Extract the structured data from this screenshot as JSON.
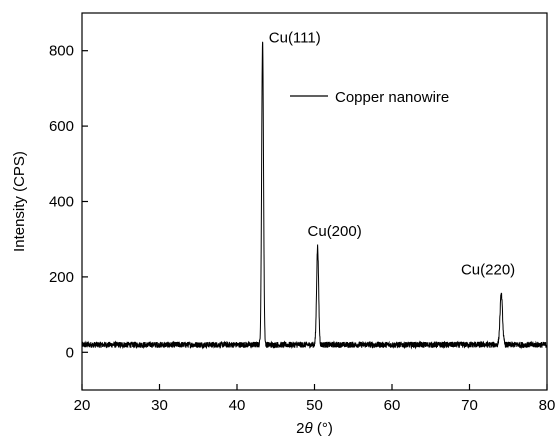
{
  "chart_data": {
    "type": "line",
    "xlabel_prefix": "2",
    "xlabel_symbol": "θ",
    "xlabel_unit": " (°)",
    "ylabel": "Intensity (CPS)",
    "xlim": [
      20,
      80
    ],
    "ylim": [
      -100,
      900
    ],
    "xticks": [
      20,
      30,
      40,
      50,
      60,
      70,
      80
    ],
    "yticks": [
      0,
      200,
      400,
      600,
      800
    ],
    "grid": false,
    "legend": {
      "placement": "top-right",
      "entries": [
        "Copper nanowire"
      ]
    },
    "series": [
      {
        "name": "Copper nanowire",
        "color": "#000000",
        "baseline": 20,
        "noise": 8,
        "peaks": [
          {
            "center": 43.3,
            "height": 805,
            "width": 0.12
          },
          {
            "center": 50.4,
            "height": 260,
            "width": 0.13
          },
          {
            "center": 74.1,
            "height": 135,
            "width": 0.16
          }
        ]
      }
    ],
    "annotations": [
      {
        "text": "Cu(111)",
        "x": 44.1,
        "y": 822
      },
      {
        "text": "Cu(200)",
        "x": 49.1,
        "y": 309
      },
      {
        "text": "Cu(220)",
        "x": 68.9,
        "y": 207
      }
    ]
  }
}
